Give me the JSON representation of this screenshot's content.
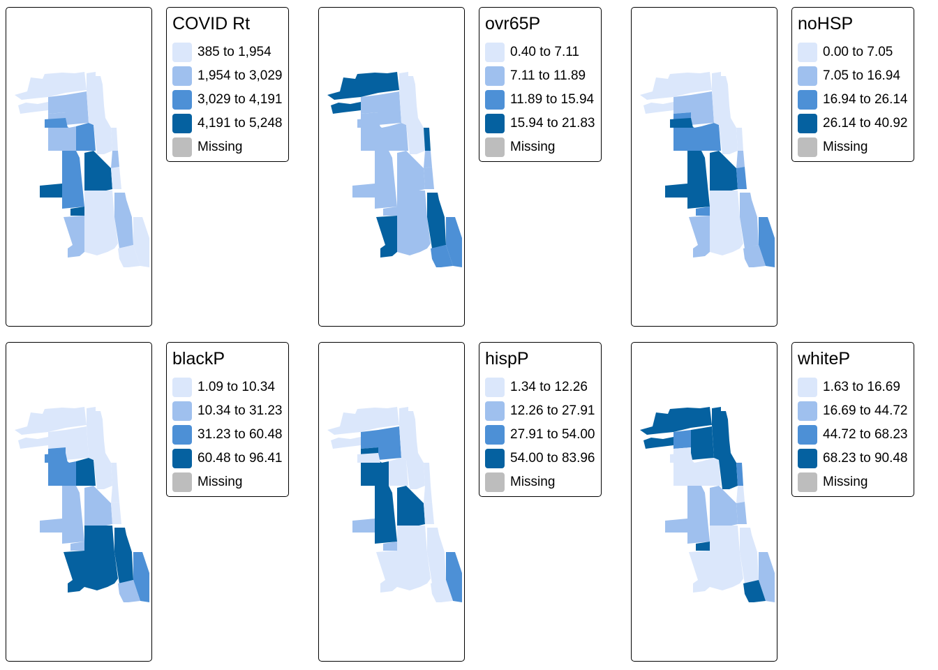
{
  "colors": {
    "c1": "#dbe7fb",
    "c2": "#9fc0ee",
    "c3": "#4d90d6",
    "c4": "#0561a0",
    "missing": "#bdbdbd"
  },
  "panels": [
    {
      "title": "COVID Rt",
      "classes": [
        1,
        1,
        2,
        2,
        2,
        3,
        3,
        3,
        4,
        4,
        4,
        1,
        1,
        2,
        1,
        1,
        2,
        2,
        1,
        1
      ],
      "legend": [
        {
          "label": "385 to 1,954"
        },
        {
          "label": "1,954 to 3,029"
        },
        {
          "label": "3,029 to 4,191"
        },
        {
          "label": "4,191 to 5,248"
        },
        {
          "label": "Missing"
        }
      ]
    },
    {
      "title": "ovr65P",
      "classes": [
        4,
        4,
        2,
        2,
        2,
        2,
        2,
        2,
        2,
        2,
        2,
        1,
        4,
        2,
        2,
        2,
        4,
        4,
        3,
        3
      ],
      "legend": [
        {
          "label": "0.40 to 7.11"
        },
        {
          "label": "7.11 to 11.89"
        },
        {
          "label": "11.89 to 15.94"
        },
        {
          "label": "15.94 to 21.83"
        },
        {
          "label": "Missing"
        }
      ]
    },
    {
      "title": "noHSP",
      "classes": [
        1,
        1,
        2,
        2,
        3,
        4,
        3,
        4,
        4,
        4,
        3,
        1,
        1,
        2,
        3,
        1,
        2,
        2,
        3,
        2
      ],
      "legend": [
        {
          "label": "0.00 to 7.05"
        },
        {
          "label": "7.05 to 16.94"
        },
        {
          "label": "16.94 to 26.14"
        },
        {
          "label": "26.14 to 40.92"
        },
        {
          "label": "Missing"
        }
      ]
    },
    {
      "title": "blackP",
      "classes": [
        1,
        1,
        1,
        1,
        3,
        3,
        4,
        2,
        2,
        2,
        2,
        1,
        1,
        1,
        1,
        4,
        4,
        4,
        3,
        2
      ],
      "legend": [
        {
          "label": "1.09 to 10.34"
        },
        {
          "label": "10.34 to 31.23"
        },
        {
          "label": "31.23 to 60.48"
        },
        {
          "label": "60.48 to 96.41"
        },
        {
          "label": "Missing"
        }
      ]
    },
    {
      "title": "hispP",
      "classes": [
        1,
        1,
        3,
        3,
        4,
        1,
        1,
        4,
        4,
        2,
        2,
        1,
        1,
        1,
        1,
        1,
        1,
        1,
        3,
        1
      ],
      "legend": [
        {
          "label": "1.34 to 12.26"
        },
        {
          "label": "12.26 to 27.91"
        },
        {
          "label": "27.91 to 54.00"
        },
        {
          "label": "54.00 to 83.96"
        },
        {
          "label": "Missing"
        }
      ]
    },
    {
      "title": "whiteP",
      "classes": [
        4,
        4,
        3,
        4,
        1,
        1,
        1,
        2,
        2,
        2,
        4,
        4,
        3,
        1,
        2,
        1,
        1,
        1,
        2,
        4
      ],
      "legend": [
        {
          "label": "1.63 to 16.69"
        },
        {
          "label": "16.69 to 44.72"
        },
        {
          "label": "44.72 to 68.23"
        },
        {
          "label": "68.23 to 90.48"
        },
        {
          "label": "Missing"
        }
      ]
    }
  ]
}
